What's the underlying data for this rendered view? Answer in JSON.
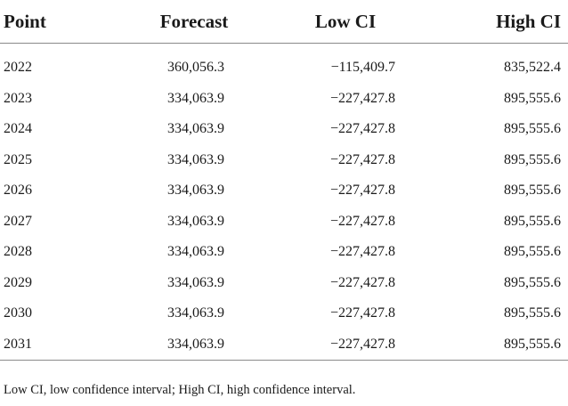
{
  "table": {
    "headers": {
      "point": "Point",
      "forecast": "Forecast",
      "low_ci": "Low CI",
      "high_ci": "High CI"
    },
    "rows": [
      {
        "point": "2022",
        "forecast": "360,056.3",
        "low_ci": "−115,409.7",
        "high_ci": "835,522.4"
      },
      {
        "point": "2023",
        "forecast": "334,063.9",
        "low_ci": "−227,427.8",
        "high_ci": "895,555.6"
      },
      {
        "point": "2024",
        "forecast": "334,063.9",
        "low_ci": "−227,427.8",
        "high_ci": "895,555.6"
      },
      {
        "point": "2025",
        "forecast": "334,063.9",
        "low_ci": "−227,427.8",
        "high_ci": "895,555.6"
      },
      {
        "point": "2026",
        "forecast": "334,063.9",
        "low_ci": "−227,427.8",
        "high_ci": "895,555.6"
      },
      {
        "point": "2027",
        "forecast": "334,063.9",
        "low_ci": "−227,427.8",
        "high_ci": "895,555.6"
      },
      {
        "point": "2028",
        "forecast": "334,063.9",
        "low_ci": "−227,427.8",
        "high_ci": "895,555.6"
      },
      {
        "point": "2029",
        "forecast": "334,063.9",
        "low_ci": "−227,427.8",
        "high_ci": "895,555.6"
      },
      {
        "point": "2030",
        "forecast": "334,063.9",
        "low_ci": "−227,427.8",
        "high_ci": "895,555.6"
      },
      {
        "point": "2031",
        "forecast": "334,063.9",
        "low_ci": "−227,427.8",
        "high_ci": "895,555.6"
      }
    ]
  },
  "footnote": "Low CI, low confidence interval; High CI, high confidence interval."
}
